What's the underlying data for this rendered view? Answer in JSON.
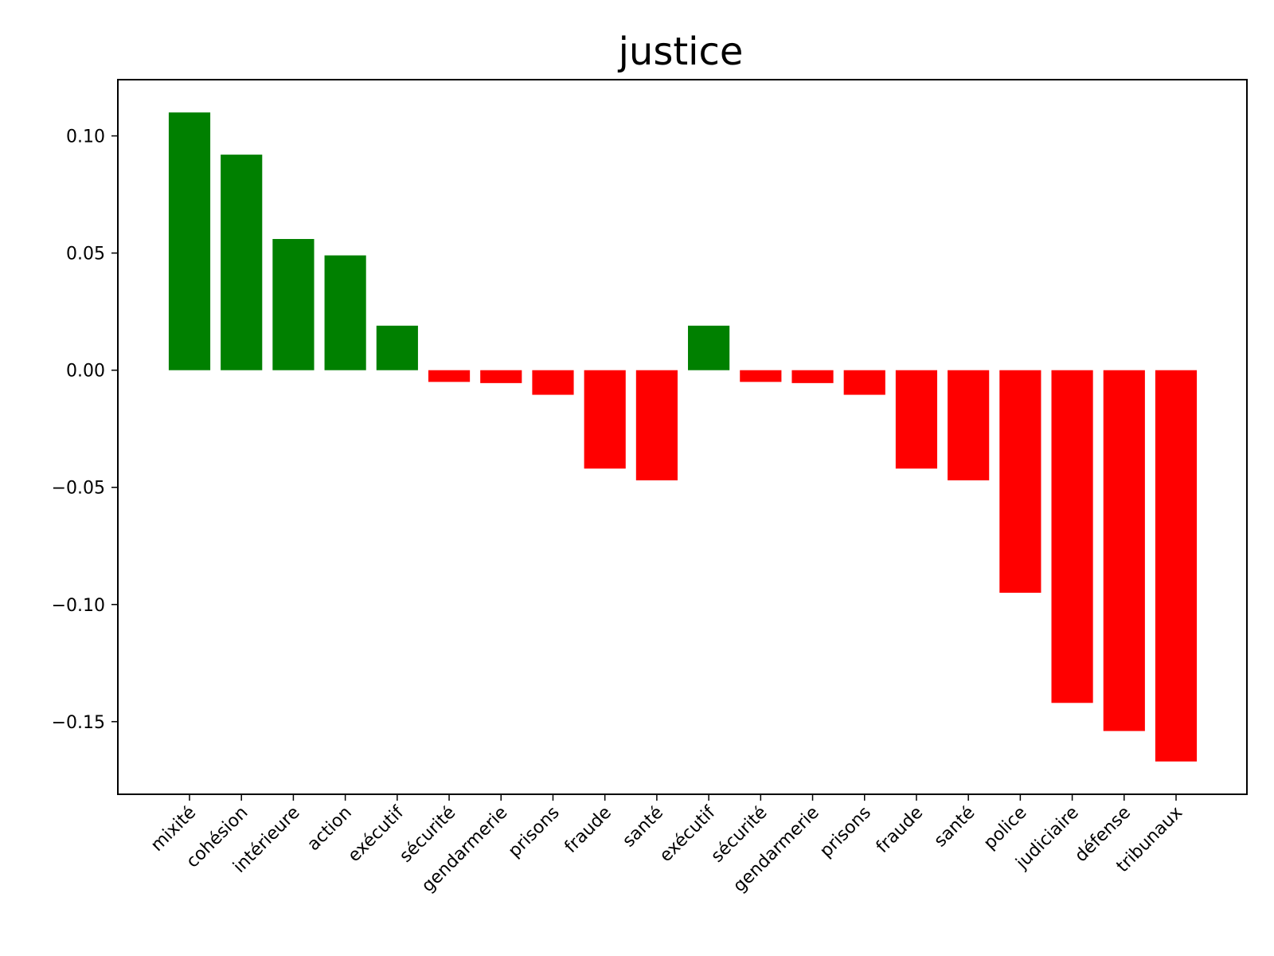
{
  "chart_data": {
    "type": "bar",
    "title": "justice",
    "xlabel": "",
    "ylabel": "",
    "categories": [
      "mixité",
      "cohésion",
      "intérieure",
      "action",
      "exécutif",
      "sécurité",
      "gendarmerie",
      "prisons",
      "fraude",
      "santé",
      "exécutif",
      "sécurité",
      "gendarmerie",
      "prisons",
      "fraude",
      "santé",
      "police",
      "judiciaire",
      "défense",
      "tribunaux"
    ],
    "values": [
      0.11,
      0.092,
      0.056,
      0.049,
      0.019,
      -0.005,
      -0.0055,
      -0.0105,
      -0.042,
      -0.047,
      0.019,
      -0.005,
      -0.0055,
      -0.0105,
      -0.042,
      -0.047,
      -0.095,
      -0.142,
      -0.154,
      -0.167
    ],
    "ylim": [
      -0.181,
      0.124
    ],
    "yticks": [
      -0.15,
      -0.1,
      -0.05,
      0.0,
      0.05,
      0.1
    ],
    "ytick_labels": [
      "−0.15",
      "−0.10",
      "−0.05",
      "0.00",
      "0.05",
      "0.10"
    ],
    "grid": false,
    "legend": "none",
    "x_label_rotation_deg": 45,
    "colors": {
      "positive": "#008000",
      "negative": "#ff0000",
      "axis": "#000000",
      "background": "#ffffff"
    }
  }
}
